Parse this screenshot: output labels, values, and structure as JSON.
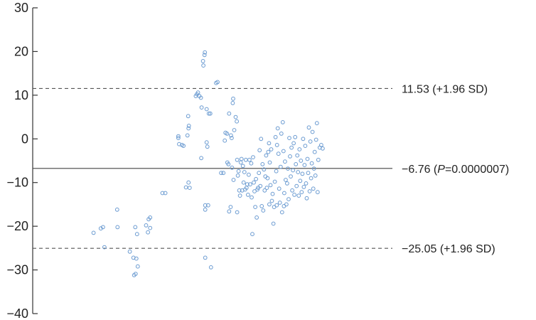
{
  "chart_data": {
    "type": "scatter",
    "title": "",
    "xlabel": "",
    "ylabel": "",
    "ylim": [
      -40,
      30
    ],
    "y_ticks": [
      30,
      20,
      10,
      0,
      -10,
      -20,
      -30,
      -40
    ],
    "y_tick_labels": [
      "30",
      "20",
      "10",
      "0",
      "−10",
      "−20",
      "−30",
      "−40"
    ],
    "xlim": [
      0,
      100
    ],
    "grid": false,
    "point_style": {
      "fill": "none",
      "stroke": "#6b9bd1"
    },
    "reference_lines": [
      {
        "name": "upper_loa",
        "y": 11.53,
        "style": "dashed",
        "label": "11.53 (+1.96 SD)"
      },
      {
        "name": "mean",
        "y": -6.76,
        "style": "solid",
        "label_prefix": "−6.76 (",
        "label_italic": "P",
        "label_suffix": "=0.0000007)"
      },
      {
        "name": "lower_loa",
        "y": -25.05,
        "style": "dashed",
        "label": "−25.05 (+1.96 SD)"
      }
    ],
    "points": [
      [
        16,
        -21.5
      ],
      [
        18,
        -20.5
      ],
      [
        18.6,
        -20.2
      ],
      [
        19,
        -24.8
      ],
      [
        22.5,
        -16.2
      ],
      [
        22.6,
        -20.2
      ],
      [
        26,
        -25.8
      ],
      [
        27,
        -27.2
      ],
      [
        27.2,
        -31.2
      ],
      [
        27.6,
        -30.9
      ],
      [
        27.8,
        -27.4
      ],
      [
        27.5,
        -20.2
      ],
      [
        28,
        -21.8
      ],
      [
        28.2,
        -29.2
      ],
      [
        30.5,
        -19.8
      ],
      [
        31,
        -21.4
      ],
      [
        31.2,
        -18.4
      ],
      [
        31.6,
        -20.4
      ],
      [
        31.6,
        -18.0
      ],
      [
        35,
        -12.4
      ],
      [
        35.8,
        -12.4
      ],
      [
        39.4,
        0.2
      ],
      [
        39.4,
        0.6
      ],
      [
        39.6,
        -1.2
      ],
      [
        40.4,
        -1.4
      ],
      [
        40.8,
        -1.6
      ],
      [
        41.5,
        -11.1
      ],
      [
        41.9,
        0.8
      ],
      [
        42.1,
        5.2
      ],
      [
        42.2,
        2.4
      ],
      [
        42.3,
        3.0
      ],
      [
        42.2,
        -10.0
      ],
      [
        42.5,
        -11.2
      ],
      [
        44.2,
        9.8
      ],
      [
        44.5,
        10.2
      ],
      [
        44.8,
        10.6
      ],
      [
        45.2,
        9.8
      ],
      [
        45.6,
        9.4
      ],
      [
        45.7,
        -4.4
      ],
      [
        45.8,
        7.2
      ],
      [
        46.2,
        17.8
      ],
      [
        46.3,
        16.8
      ],
      [
        46.6,
        19.2
      ],
      [
        46.7,
        19.8
      ],
      [
        46.8,
        -15.2
      ],
      [
        46.8,
        -16.2
      ],
      [
        46.8,
        -27.2
      ],
      [
        47.2,
        6.8
      ],
      [
        47.2,
        -0.8
      ],
      [
        47.4,
        -1.8
      ],
      [
        47.6,
        -15.2
      ],
      [
        47.8,
        5.8
      ],
      [
        48.2,
        5.8
      ],
      [
        48.4,
        -29.4
      ],
      [
        49.8,
        12.8
      ],
      [
        50.2,
        13.0
      ],
      [
        51.2,
        -7.8
      ],
      [
        51.8,
        -7.8
      ],
      [
        52.2,
        -0.4
      ],
      [
        52.4,
        1.4
      ],
      [
        52.8,
        1.2
      ],
      [
        52.9,
        -5.4
      ],
      [
        53.2,
        -5.8
      ],
      [
        53.4,
        5.8
      ],
      [
        53.4,
        -16.6
      ],
      [
        53.8,
        -15.6
      ],
      [
        53.9,
        0.8
      ],
      [
        54.1,
        0.2
      ],
      [
        54.2,
        -6.6
      ],
      [
        54.4,
        8.2
      ],
      [
        54.5,
        9.2
      ],
      [
        54.6,
        -9.4
      ],
      [
        54.8,
        2.0
      ],
      [
        55.2,
        5.0
      ],
      [
        55.5,
        4.0
      ],
      [
        55.6,
        -16.8
      ],
      [
        55.6,
        -4.8
      ],
      [
        55.8,
        -8.4
      ],
      [
        56.0,
        -7.4
      ],
      [
        56.2,
        -11.8
      ],
      [
        56.4,
        -13.0
      ],
      [
        56.6,
        -5.4
      ],
      [
        56.8,
        -4.6
      ],
      [
        57.0,
        -11.8
      ],
      [
        57.2,
        -6.2
      ],
      [
        57.4,
        -10.0
      ],
      [
        57.6,
        -7.6
      ],
      [
        57.8,
        -11.6
      ],
      [
        58.0,
        -4.8
      ],
      [
        58.2,
        -11.2
      ],
      [
        58.4,
        -10.4
      ],
      [
        58.6,
        -12.8
      ],
      [
        58.8,
        -8.2
      ],
      [
        59.0,
        -4.8
      ],
      [
        59.2,
        -10.4
      ],
      [
        59.5,
        -5.6
      ],
      [
        59.6,
        -13.4
      ],
      [
        59.8,
        -21.8
      ],
      [
        60.0,
        -4.2
      ],
      [
        60.2,
        -10.0
      ],
      [
        60.4,
        -12.0
      ],
      [
        60.6,
        -15.6
      ],
      [
        60.8,
        -9.2
      ],
      [
        61.0,
        -18.0
      ],
      [
        61.2,
        -11.6
      ],
      [
        61.4,
        -11.2
      ],
      [
        61.6,
        -7.8
      ],
      [
        61.8,
        -2.6
      ],
      [
        62.0,
        -10.8
      ],
      [
        62.2,
        0.0
      ],
      [
        62.4,
        -15.4
      ],
      [
        62.6,
        -5.8
      ],
      [
        62.8,
        -16.4
      ],
      [
        63.0,
        -7.0
      ],
      [
        63.2,
        -11.8
      ],
      [
        63.4,
        -8.6
      ],
      [
        63.6,
        -3.8
      ],
      [
        63.8,
        -11.2
      ],
      [
        64.0,
        -9.0
      ],
      [
        64.2,
        -3.0
      ],
      [
        64.4,
        -1.0
      ],
      [
        64.6,
        -5.4
      ],
      [
        64.8,
        -10.6
      ],
      [
        65.0,
        -2.4
      ],
      [
        65.2,
        -14.2
      ],
      [
        65.4,
        -12.6
      ],
      [
        65.6,
        -19.4
      ],
      [
        65.8,
        -15.6
      ],
      [
        66.0,
        -9.8
      ],
      [
        66.2,
        0.4
      ],
      [
        66.4,
        -7.4
      ],
      [
        66.6,
        -1.4
      ],
      [
        66.8,
        2.4
      ],
      [
        67.0,
        -3.4
      ],
      [
        67.2,
        -11.4
      ],
      [
        67.4,
        -14.6
      ],
      [
        67.6,
        -6.4
      ],
      [
        67.8,
        1.2
      ],
      [
        68.0,
        -16.8
      ],
      [
        68.2,
        3.8
      ],
      [
        68.4,
        -2.8
      ],
      [
        68.6,
        -12.4
      ],
      [
        68.8,
        -5.2
      ],
      [
        69.0,
        -9.4
      ],
      [
        69.2,
        -15.0
      ],
      [
        69.4,
        -10.2
      ],
      [
        69.6,
        -6.8
      ],
      [
        69.8,
        -13.8
      ],
      [
        70.0,
        0.2
      ],
      [
        70.2,
        -4.0
      ],
      [
        70.4,
        -8.6
      ],
      [
        70.6,
        -2.0
      ],
      [
        70.8,
        -11.8
      ],
      [
        71.0,
        -7.2
      ],
      [
        71.2,
        -1.0
      ],
      [
        71.4,
        -12.8
      ],
      [
        71.6,
        0.4
      ],
      [
        71.8,
        -5.8
      ],
      [
        72.0,
        -10.8
      ],
      [
        72.2,
        -3.8
      ],
      [
        72.4,
        -7.6
      ],
      [
        72.6,
        -13.0
      ],
      [
        72.8,
        -2.4
      ],
      [
        73.0,
        -9.6
      ],
      [
        73.2,
        -5.0
      ],
      [
        73.4,
        -12.2
      ],
      [
        73.6,
        -8.0
      ],
      [
        73.8,
        0.0
      ],
      [
        74.0,
        -11.0
      ],
      [
        74.2,
        -6.0
      ],
      [
        74.4,
        -1.6
      ],
      [
        74.6,
        -10.2
      ],
      [
        74.8,
        -13.6
      ],
      [
        75.0,
        -4.6
      ],
      [
        75.2,
        -7.8
      ],
      [
        75.4,
        2.6
      ],
      [
        75.6,
        -12.0
      ],
      [
        75.8,
        -0.6
      ],
      [
        76.0,
        -9.0
      ],
      [
        76.2,
        -5.6
      ],
      [
        76.4,
        1.6
      ],
      [
        76.6,
        -11.4
      ],
      [
        76.8,
        -6.8
      ],
      [
        77.0,
        -3.0
      ],
      [
        77.2,
        -8.4
      ],
      [
        77.4,
        -0.2
      ],
      [
        77.6,
        3.6
      ],
      [
        77.8,
        -12.2
      ],
      [
        78.0,
        -4.8
      ],
      [
        78.4,
        -2.0
      ],
      [
        78.8,
        -1.4
      ],
      [
        79.2,
        -2.2
      ],
      [
        64.5,
        -15.0
      ],
      [
        66.5,
        -15.2
      ],
      [
        68.5,
        -15.4
      ]
    ]
  }
}
